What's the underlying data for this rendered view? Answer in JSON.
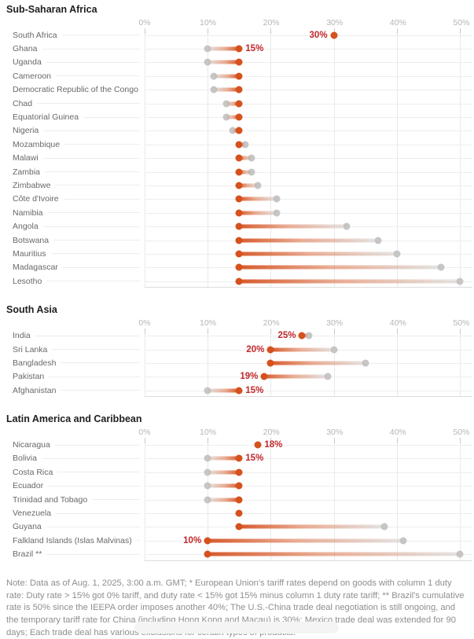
{
  "colors": {
    "current_rate_dot": "#d5511d",
    "previous_rate_dot": "#c6c6c6",
    "value_label_text": "#c1272b"
  },
  "chart_data": [
    {
      "type": "scatter",
      "subtype": "dumbbell",
      "title": "Sub-Saharan Africa",
      "xlabel": "",
      "xlim": [
        0,
        52
      ],
      "grid": true,
      "ticks": [
        0,
        10,
        20,
        30,
        40,
        50
      ],
      "tick_labels": [
        "0%",
        "10%",
        "20%",
        "30%",
        "40%",
        "50%"
      ],
      "rows": [
        {
          "country": "South Africa",
          "current": 30,
          "previous": null,
          "value_label": "30%",
          "label_side": "left"
        },
        {
          "country": "Ghana",
          "current": 15,
          "previous": 10,
          "value_label": "15%",
          "label_side": "right"
        },
        {
          "country": "Uganda",
          "current": 15,
          "previous": 10,
          "value_label": null,
          "label_side": null
        },
        {
          "country": "Cameroon",
          "current": 15,
          "previous": 11,
          "value_label": null,
          "label_side": null
        },
        {
          "country": "Democratic Republic of the Congo",
          "current": 15,
          "previous": 11,
          "value_label": null,
          "label_side": null
        },
        {
          "country": "Chad",
          "current": 15,
          "previous": 13,
          "value_label": null,
          "label_side": null
        },
        {
          "country": "Equatorial Guinea",
          "current": 15,
          "previous": 13,
          "value_label": null,
          "label_side": null
        },
        {
          "country": "Nigeria",
          "current": 15,
          "previous": 14,
          "value_label": null,
          "label_side": null
        },
        {
          "country": "Mozambique",
          "current": 15,
          "previous": 16,
          "value_label": null,
          "label_side": null
        },
        {
          "country": "Malawi",
          "current": 15,
          "previous": 17,
          "value_label": null,
          "label_side": null
        },
        {
          "country": "Zambia",
          "current": 15,
          "previous": 17,
          "value_label": null,
          "label_side": null
        },
        {
          "country": "Zimbabwe",
          "current": 15,
          "previous": 18,
          "value_label": null,
          "label_side": null
        },
        {
          "country": "Côte d'Ivoire",
          "current": 15,
          "previous": 21,
          "value_label": null,
          "label_side": null
        },
        {
          "country": "Namibia",
          "current": 15,
          "previous": 21,
          "value_label": null,
          "label_side": null
        },
        {
          "country": "Angola",
          "current": 15,
          "previous": 32,
          "value_label": null,
          "label_side": null
        },
        {
          "country": "Botswana",
          "current": 15,
          "previous": 37,
          "value_label": null,
          "label_side": null
        },
        {
          "country": "Mauritius",
          "current": 15,
          "previous": 40,
          "value_label": null,
          "label_side": null
        },
        {
          "country": "Madagascar",
          "current": 15,
          "previous": 47,
          "value_label": null,
          "label_side": null
        },
        {
          "country": "Lesotho",
          "current": 15,
          "previous": 50,
          "value_label": null,
          "label_side": null
        }
      ]
    },
    {
      "type": "scatter",
      "subtype": "dumbbell",
      "title": "South Asia",
      "xlabel": "",
      "xlim": [
        0,
        52
      ],
      "grid": true,
      "ticks": [
        0,
        10,
        20,
        30,
        40,
        50
      ],
      "tick_labels": [
        "0%",
        "10%",
        "20%",
        "30%",
        "40%",
        "50%"
      ],
      "rows": [
        {
          "country": "India",
          "current": 25,
          "previous": 26,
          "value_label": "25%",
          "label_side": "left"
        },
        {
          "country": "Sri Lanka",
          "current": 20,
          "previous": 30,
          "value_label": "20%",
          "label_side": "left"
        },
        {
          "country": "Bangladesh",
          "current": 20,
          "previous": 35,
          "value_label": null,
          "label_side": null
        },
        {
          "country": "Pakistan",
          "current": 19,
          "previous": 29,
          "value_label": "19%",
          "label_side": "left"
        },
        {
          "country": "Afghanistan",
          "current": 15,
          "previous": 10,
          "value_label": "15%",
          "label_side": "right"
        }
      ]
    },
    {
      "type": "scatter",
      "subtype": "dumbbell",
      "title": "Latin America and Caribbean",
      "xlabel": "",
      "xlim": [
        0,
        52
      ],
      "grid": true,
      "ticks": [
        0,
        10,
        20,
        30,
        40,
        50
      ],
      "tick_labels": [
        "0%",
        "10%",
        "20%",
        "30%",
        "40%",
        "50%"
      ],
      "rows": [
        {
          "country": "Nicaragua",
          "current": 18,
          "previous": null,
          "value_label": "18%",
          "label_side": "right"
        },
        {
          "country": "Bolivia",
          "current": 15,
          "previous": 10,
          "value_label": "15%",
          "label_side": "right"
        },
        {
          "country": "Costa Rica",
          "current": 15,
          "previous": 10,
          "value_label": null,
          "label_side": null
        },
        {
          "country": "Ecuador",
          "current": 15,
          "previous": 10,
          "value_label": null,
          "label_side": null
        },
        {
          "country": "Trinidad and Tobago",
          "current": 15,
          "previous": 10,
          "value_label": null,
          "label_side": null
        },
        {
          "country": "Venezuela",
          "current": 15,
          "previous": null,
          "value_label": null,
          "label_side": null
        },
        {
          "country": "Guyana",
          "current": 15,
          "previous": 38,
          "value_label": null,
          "label_side": null
        },
        {
          "country": "Falkland Islands (Islas Malvinas)",
          "current": 10,
          "previous": 41,
          "value_label": "10%",
          "label_side": "left"
        },
        {
          "country": "Brazil **",
          "current": 10,
          "previous": 50,
          "value_label": null,
          "label_side": null
        }
      ]
    }
  ],
  "note": {
    "text": "Note: Data as of Aug. 1, 2025, 3:00 a.m. GMT; * European Union's tariff rates depend on goods with column 1 duty rate: Duty rate > 15% got 0% tariff, and duty rate < 15% got 15% minus column 1 duty rate tariff; ** Brazil's cumulative rate is 50% since the IEEPA order imposes another 40%; The U.S.-China trade deal negotiation is still ongoing, and the temporary tariff rate for China (including Hong Kong and Macau) is 30%; Mexico trade deal was extended for 90 days; Each trade deal has various exclusions for certain types of products."
  }
}
